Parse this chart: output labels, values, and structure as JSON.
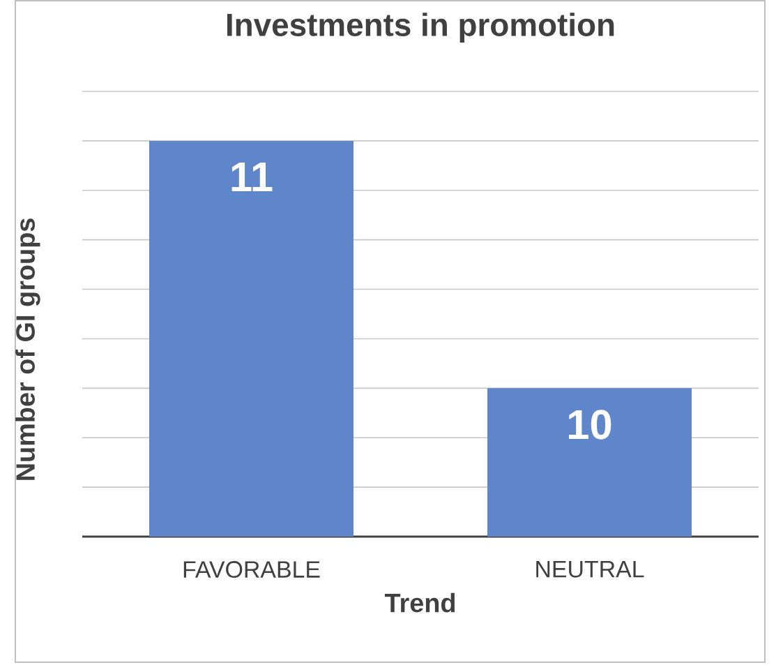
{
  "chart_data": {
    "type": "bar",
    "title": "Investments in promotion",
    "xlabel": "Trend",
    "ylabel": "Number of GI groups",
    "categories": [
      "FAVORABLE",
      "NEUTRAL"
    ],
    "values": [
      11,
      10
    ],
    "color": "#5f86cb",
    "ylim": [
      9.4,
      11.2
    ],
    "yticks": [
      {
        "value": 9.4,
        "label": null
      },
      {
        "value": 9.6,
        "label": null
      },
      {
        "value": 9.8,
        "label": null
      },
      {
        "value": 10.0,
        "label": null
      },
      {
        "value": 10.2,
        "label": null
      },
      {
        "value": 10.4,
        "label": null
      },
      {
        "value": 10.6,
        "label": null
      },
      {
        "value": 10.8,
        "label": null
      },
      {
        "value": 11.0,
        "label": null
      },
      {
        "value": 11.2,
        "label": null
      }
    ],
    "grid": "y",
    "tick_labels": "x",
    "data_labels": true
  }
}
